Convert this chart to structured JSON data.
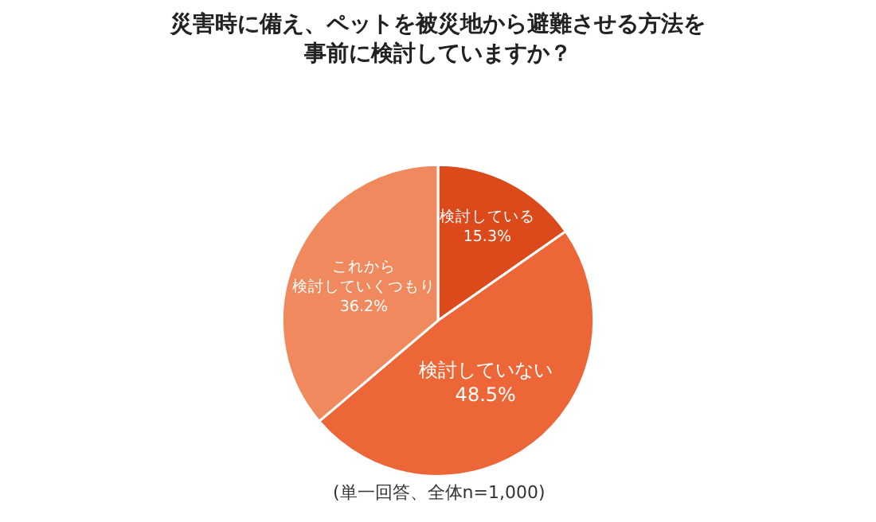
{
  "chart_data": {
    "type": "pie",
    "title": "災害時に備え、ペットを被災地から避難させる方法を事前に検討していますか？",
    "categories": [
      "検討している",
      "検討していない",
      "これから検討していくつもり"
    ],
    "values": [
      15.3,
      48.5,
      36.2
    ],
    "value_labels": [
      "15.3%",
      "48.5%",
      "36.2%"
    ],
    "colors": [
      "#dc4a1c",
      "#ec6637",
      "#f08a5e"
    ],
    "annotations": [
      "(単一回答、全体n=1,000)"
    ],
    "legend": false
  }
}
